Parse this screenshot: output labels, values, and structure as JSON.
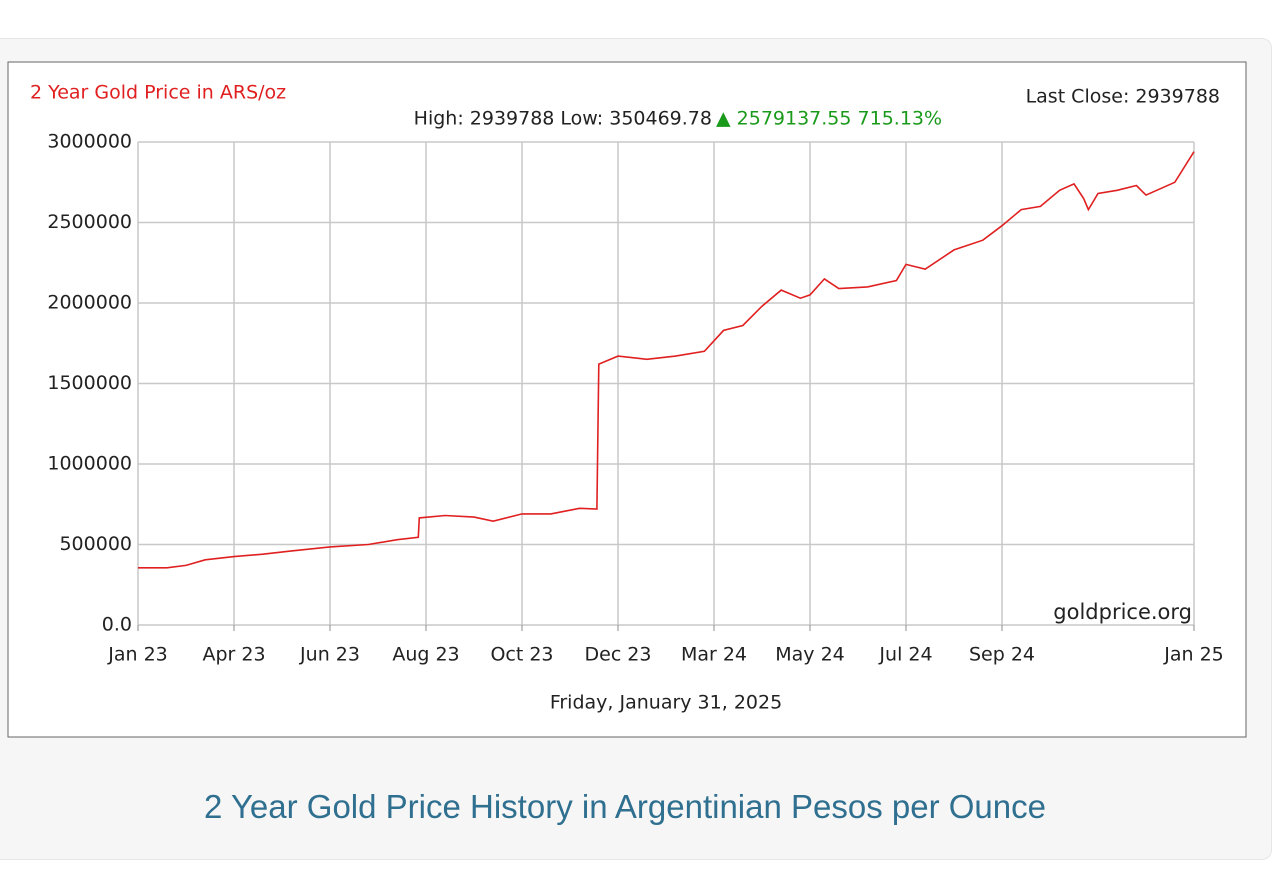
{
  "chart_data": {
    "type": "line",
    "title": "2 Year Gold Price in ARS/oz",
    "last_close": "Last Close: 2939788",
    "high_low": "High: 2939788 Low: 350469.78",
    "change": "▲ 2579137.55 715.13%",
    "date_label": "Friday, January 31, 2025",
    "source": "goldprice.org",
    "xlim": [
      0,
      11
    ],
    "xticks": [
      {
        "value": 0,
        "label": "Jan 23"
      },
      {
        "value": 1,
        "label": "Apr 23"
      },
      {
        "value": 2,
        "label": "Jun 23"
      },
      {
        "value": 3,
        "label": "Aug 23"
      },
      {
        "value": 4,
        "label": "Oct 23"
      },
      {
        "value": 5,
        "label": "Dec 23"
      },
      {
        "value": 6,
        "label": "Mar 24"
      },
      {
        "value": 7,
        "label": "May 24"
      },
      {
        "value": 8,
        "label": "Jul 24"
      },
      {
        "value": 9,
        "label": "Sep 24"
      },
      {
        "value": 11,
        "label": "Jan 25"
      }
    ],
    "ylim": [
      0,
      3000000
    ],
    "yticks": [
      {
        "value": 0,
        "label": "0.0"
      },
      500000,
      1000000,
      1500000,
      2000000,
      2500000,
      3000000
    ],
    "grid": true,
    "series": [
      {
        "name": "Gold price",
        "color": "#e02020",
        "x": [
          0,
          0.3,
          0.5,
          0.7,
          1.0,
          1.3,
          1.6,
          2.0,
          2.4,
          2.7,
          2.92,
          2.93,
          3.2,
          3.5,
          3.7,
          4.0,
          4.3,
          4.6,
          4.78,
          4.8,
          5.0,
          5.3,
          5.6,
          5.9,
          6.1,
          6.3,
          6.5,
          6.7,
          6.9,
          7.0,
          7.15,
          7.3,
          7.6,
          7.9,
          8.0,
          8.2,
          8.5,
          8.8,
          9.0,
          9.2,
          9.4,
          9.6,
          9.75,
          9.85,
          9.9,
          10.0,
          10.2,
          10.4,
          10.5,
          10.8,
          11.0
        ],
        "values": [
          355000,
          355000,
          370000,
          405000,
          425000,
          440000,
          460000,
          485000,
          500000,
          530000,
          545000,
          665000,
          680000,
          670000,
          645000,
          690000,
          690000,
          725000,
          720000,
          1620000,
          1670000,
          1650000,
          1670000,
          1700000,
          1830000,
          1860000,
          1980000,
          2080000,
          2030000,
          2050000,
          2150000,
          2090000,
          2100000,
          2140000,
          2240000,
          2210000,
          2330000,
          2390000,
          2480000,
          2580000,
          2600000,
          2700000,
          2740000,
          2650000,
          2580000,
          2680000,
          2700000,
          2730000,
          2670000,
          2750000,
          2939788
        ]
      }
    ]
  },
  "caption": "2 Year Gold Price History in Argentinian Pesos per Ounce"
}
